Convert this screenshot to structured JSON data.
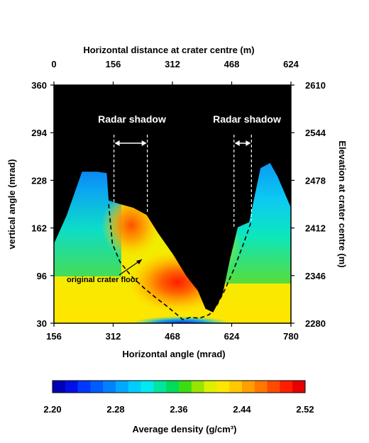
{
  "chart_data": {
    "type": "heatmap",
    "title": "",
    "top_axis": {
      "label": "Horizontal distance at crater centre (m)",
      "ticks": [
        "0",
        "156",
        "312",
        "468",
        "624"
      ],
      "range": [
        0,
        624
      ]
    },
    "bottom_axis": {
      "label": "Horizontal angle (mrad)",
      "ticks": [
        "156",
        "312",
        "468",
        "624",
        "780"
      ],
      "range": [
        156,
        780
      ]
    },
    "left_axis": {
      "label": "vertical angle (mrad)",
      "ticks": [
        "360",
        "294",
        "228",
        "162",
        "96",
        "30"
      ],
      "range": [
        30,
        360
      ]
    },
    "right_axis": {
      "label": "Elevation at crater centre (m)",
      "ticks": [
        "2610",
        "2544",
        "2478",
        "2412",
        "2346",
        "2280"
      ],
      "range": [
        2280,
        2610
      ]
    },
    "annotations": [
      {
        "text": "Radar shadow",
        "x_range": [
          314,
          402
        ]
      },
      {
        "text": "Radar shadow",
        "x_range": [
          630,
          676
        ]
      },
      {
        "text": "original crater floor"
      }
    ],
    "colorbar": {
      "label": "Average density (g/cm³)",
      "ticks": [
        "2.20",
        "2.28",
        "2.36",
        "2.44",
        "2.52"
      ],
      "min": 2.2,
      "max": 2.52,
      "colors": [
        "#0000b4",
        "#0010e6",
        "#0038ff",
        "#005cff",
        "#0082ff",
        "#00a8ff",
        "#00cdff",
        "#00eaf0",
        "#00e6a0",
        "#00dc5a",
        "#3cdc14",
        "#96e600",
        "#dcf000",
        "#ffe600",
        "#ffc800",
        "#ffa000",
        "#ff7800",
        "#ff4b00",
        "#ff1e00",
        "#e60000"
      ]
    },
    "terrain_profile": {
      "x": [
        156,
        190,
        230,
        270,
        295,
        300,
        330,
        365,
        400,
        430,
        470,
        505,
        535,
        555,
        575,
        600,
        620,
        640,
        670,
        690,
        700,
        725,
        745,
        780
      ],
      "y": [
        140,
        180,
        240,
        240,
        238,
        200,
        195,
        190,
        180,
        155,
        125,
        95,
        75,
        50,
        45,
        70,
        120,
        163,
        170,
        220,
        245,
        252,
        233,
        190
      ]
    },
    "original_crater_floor": {
      "x": [
        300,
        310,
        330,
        360,
        395,
        425,
        450,
        480,
        495,
        515,
        540,
        565,
        585,
        605,
        630,
        655,
        675
      ],
      "y": [
        195,
        140,
        115,
        95,
        78,
        65,
        55,
        42,
        35,
        38,
        37,
        42,
        55,
        75,
        105,
        140,
        170
      ]
    },
    "shadow_lines_x": [
      314,
      402,
      630,
      676
    ]
  }
}
